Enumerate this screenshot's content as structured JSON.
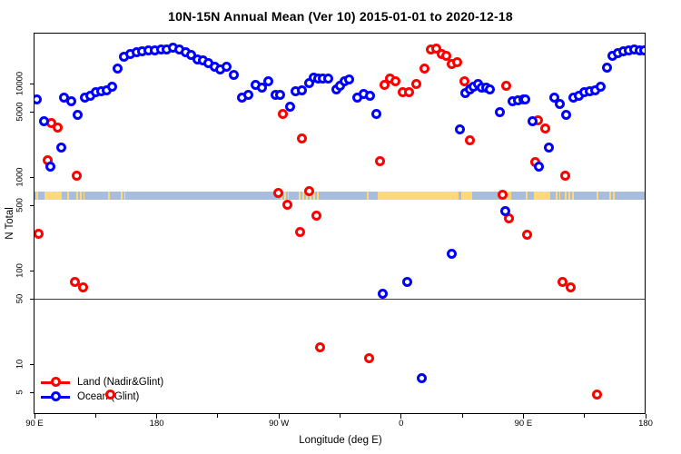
{
  "chart_data": {
    "type": "scatter",
    "title": "10N-15N Annual Mean (Ver 10)   2015-01-01 to 2020-12-18",
    "xlabel": "Longitude (deg E)",
    "ylabel": "N Total",
    "x_axis": {
      "range_plot_degrees": [
        90,
        540
      ],
      "major_ticks": [
        {
          "pos": 90,
          "label": "90 E"
        },
        {
          "pos": 180,
          "label": "180"
        },
        {
          "pos": 270,
          "label": "90 W"
        },
        {
          "pos": 360,
          "label": "0"
        },
        {
          "pos": 450,
          "label": "90 E"
        },
        {
          "pos": 540,
          "label": "180"
        }
      ],
      "minor_tick_positions": [
        135,
        225,
        315,
        405,
        495
      ]
    },
    "y_axis": {
      "scale": "log",
      "range": [
        3,
        34000
      ],
      "tick_values": [
        5,
        10,
        50,
        100,
        500,
        1000,
        5000,
        10000
      ],
      "tick_labels": [
        "5",
        "10",
        "50",
        "100",
        "500",
        "1000",
        "5000",
        "10000"
      ]
    },
    "reference_line": {
      "value": 50,
      "color": "#3c3c3c"
    },
    "latitude_band_overlay": {
      "description": "10N-15N land/ocean strip map",
      "value_range": [
        570,
        695
      ],
      "ocean_color": "#a8bdde",
      "land_color": "#fdd97a",
      "land_patches": [
        {
          "lon_range": [
            91.5,
            94
          ],
          "speckled": true
        },
        {
          "lon_range": [
            97.5,
            110
          ],
          "speckled": false
        },
        {
          "lon_range": [
            114,
            117
          ],
          "speckled": true
        },
        {
          "lon_range": [
            120.5,
            127
          ],
          "speckled": true
        },
        {
          "lon_range": [
            144,
            146
          ],
          "speckled": true
        },
        {
          "lon_range": [
            153.5,
            157
          ],
          "speckled": true
        },
        {
          "lon_range": [
            271,
            277.5
          ],
          "speckled": true
        },
        {
          "lon_range": [
            284.5,
            299.5
          ],
          "speckled": true
        },
        {
          "lon_range": [
            335,
            337
          ],
          "speckled": true
        },
        {
          "lon_range": [
            343,
            402.5
          ],
          "speckled": false
        },
        {
          "lon_range": [
            404,
            412.5
          ],
          "speckled": false
        },
        {
          "lon_range": [
            434,
            441
          ],
          "speckled": false
        },
        {
          "lon_range": [
            451.5,
            454
          ],
          "speckled": true
        },
        {
          "lon_range": [
            457.5,
            470
          ],
          "speckled": false
        },
        {
          "lon_range": [
            474,
            477
          ],
          "speckled": true
        },
        {
          "lon_range": [
            480.5,
            487
          ],
          "speckled": true
        },
        {
          "lon_range": [
            504,
            506
          ],
          "speckled": true
        },
        {
          "lon_range": [
            513.5,
            517
          ],
          "speckled": true
        }
      ]
    },
    "series": [
      {
        "name": "Land (Nadir&Glint)",
        "color": "#ff0000",
        "points": [
          [
            93,
            245
          ],
          [
            99.8,
            1520
          ],
          [
            102.5,
            3800
          ],
          [
            106.8,
            3400
          ],
          [
            120,
            75
          ],
          [
            121,
            1030
          ],
          [
            126,
            66
          ],
          [
            146,
            4.7
          ],
          [
            269.8,
            680
          ],
          [
            272.6,
            4740
          ],
          [
            276,
            510
          ],
          [
            285.5,
            260
          ],
          [
            286.8,
            2600
          ],
          [
            292,
            715
          ],
          [
            297.5,
            385
          ],
          [
            300.4,
            15
          ],
          [
            336.5,
            11.5
          ],
          [
            344.3,
            1480
          ],
          [
            348,
            9700
          ],
          [
            352,
            11200
          ],
          [
            356,
            10600
          ],
          [
            361,
            8150
          ],
          [
            366,
            8150
          ],
          [
            371.5,
            9800
          ],
          [
            377,
            14500
          ],
          [
            382,
            23200
          ],
          [
            386,
            23600
          ],
          [
            390,
            20700
          ],
          [
            393,
            19900
          ],
          [
            397,
            16200
          ],
          [
            401,
            17000
          ],
          [
            406.8,
            10500
          ],
          [
            410.6,
            2450
          ],
          [
            434.6,
            650
          ],
          [
            437.3,
            9500
          ],
          [
            439.1,
            365
          ],
          [
            452.9,
            240
          ],
          [
            458.5,
            1460
          ],
          [
            461,
            4050
          ],
          [
            465.8,
            3300
          ],
          [
            478.7,
            75
          ],
          [
            481,
            1030
          ],
          [
            484.7,
            66
          ],
          [
            504,
            4.7
          ]
        ]
      },
      {
        "name": "Ocean (Glint)",
        "color": "#0000ff",
        "points": [
          [
            91.5,
            6700
          ],
          [
            97,
            3980
          ],
          [
            102,
            1280
          ],
          [
            109.5,
            2050
          ],
          [
            111.5,
            7150
          ],
          [
            117,
            6400
          ],
          [
            122,
            4650
          ],
          [
            127,
            7000
          ],
          [
            131,
            7400
          ],
          [
            135,
            8000
          ],
          [
            139,
            8300
          ],
          [
            143,
            8550
          ],
          [
            147,
            9150
          ],
          [
            151.5,
            14500
          ],
          [
            156,
            19500
          ],
          [
            160.5,
            20800
          ],
          [
            165,
            21800
          ],
          [
            169.5,
            22300
          ],
          [
            174,
            22500
          ],
          [
            178.5,
            22700
          ],
          [
            183,
            23000
          ],
          [
            187.5,
            23300
          ],
          [
            192,
            24200
          ],
          [
            196.5,
            23000
          ],
          [
            201,
            21700
          ],
          [
            205.5,
            20100
          ],
          [
            210,
            18200
          ],
          [
            214,
            17500
          ],
          [
            218,
            16600
          ],
          [
            222.5,
            15200
          ],
          [
            227,
            14300
          ],
          [
            231.5,
            15200
          ],
          [
            237,
            12500
          ],
          [
            242.5,
            7000
          ],
          [
            247.5,
            7600
          ],
          [
            252.5,
            9700
          ],
          [
            257.5,
            9000
          ],
          [
            262.5,
            10500
          ],
          [
            267.5,
            7600
          ],
          [
            271.2,
            7600
          ],
          [
            278,
            5700
          ],
          [
            282.5,
            8200
          ],
          [
            287,
            8400
          ],
          [
            292,
            10100
          ],
          [
            295.5,
            11600
          ],
          [
            299,
            11200
          ],
          [
            302.5,
            11200
          ],
          [
            306.5,
            11200
          ],
          [
            312,
            8700
          ],
          [
            315,
            9500
          ],
          [
            318.5,
            10500
          ],
          [
            322,
            11100
          ],
          [
            328,
            7000
          ],
          [
            332.5,
            7700
          ],
          [
            337,
            7400
          ],
          [
            341.7,
            4750
          ],
          [
            346.6,
            57
          ],
          [
            364.5,
            75
          ],
          [
            375,
            7
          ],
          [
            397,
            152
          ],
          [
            403,
            3230
          ],
          [
            407.5,
            7900
          ],
          [
            410.5,
            8700
          ],
          [
            413.5,
            9300
          ],
          [
            416.5,
            10000
          ],
          [
            419.5,
            9000
          ],
          [
            422.5,
            9000
          ],
          [
            425.5,
            8700
          ],
          [
            432.5,
            4900
          ],
          [
            436.5,
            430
          ],
          [
            442,
            6400
          ],
          [
            446,
            6600
          ],
          [
            450,
            6750
          ],
          [
            451.5,
            6700
          ],
          [
            456.9,
            3980
          ],
          [
            461.5,
            1280
          ],
          [
            468.5,
            2050
          ],
          [
            472.5,
            7000
          ],
          [
            476.5,
            6100
          ],
          [
            481.4,
            4650
          ],
          [
            487,
            7000
          ],
          [
            491,
            7400
          ],
          [
            495,
            8000
          ],
          [
            499,
            8300
          ],
          [
            503,
            8550
          ],
          [
            507,
            9150
          ],
          [
            511.5,
            14700
          ],
          [
            515.5,
            19600
          ],
          [
            519.5,
            21200
          ],
          [
            523.5,
            22200
          ],
          [
            527.5,
            22700
          ],
          [
            531.5,
            23000
          ],
          [
            535.5,
            22800
          ],
          [
            539,
            22600
          ]
        ]
      }
    ],
    "legend": {
      "position": "bottom-left"
    }
  }
}
